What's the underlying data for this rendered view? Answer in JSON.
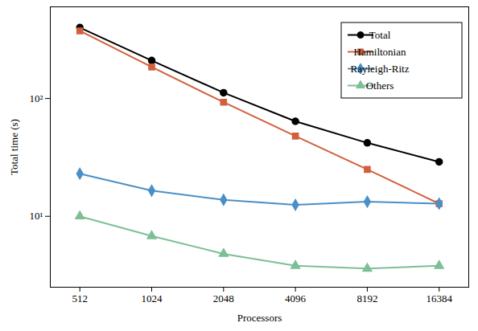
{
  "chart_data": {
    "type": "line",
    "x_label": "Processors",
    "y_label": "Total time (s)",
    "x": [
      512,
      1024,
      2048,
      4096,
      8192,
      16384
    ],
    "series": [
      {
        "name": "Total",
        "color": "#000000",
        "marker": "circle",
        "values": [
          400,
          210,
          112,
          64,
          42,
          29
        ]
      },
      {
        "name": "Hamiltonian",
        "color": "#d2603c",
        "marker": "square",
        "values": [
          375,
          185,
          93,
          48,
          25,
          12.8
        ]
      },
      {
        "name": "Rayleigh-Ritz",
        "color": "#4a8fc6",
        "marker": "diamond",
        "values": [
          23,
          16.5,
          13.8,
          12.5,
          13.3,
          12.8
        ]
      },
      {
        "name": "Others",
        "color": "#7dbf96",
        "marker": "triangle",
        "values": [
          10,
          6.8,
          4.8,
          3.8,
          3.6,
          3.8
        ]
      }
    ],
    "xlim": [
      385,
      21800
    ],
    "xticks": [
      512,
      1024,
      2048,
      4096,
      8192,
      16384
    ],
    "ylim": [
      2.5,
      600
    ],
    "yticks": [
      {
        "value": 10,
        "label": "10¹"
      },
      {
        "value": 100,
        "label": "10²"
      }
    ],
    "log": true,
    "grid": false,
    "legend": "top-right"
  }
}
